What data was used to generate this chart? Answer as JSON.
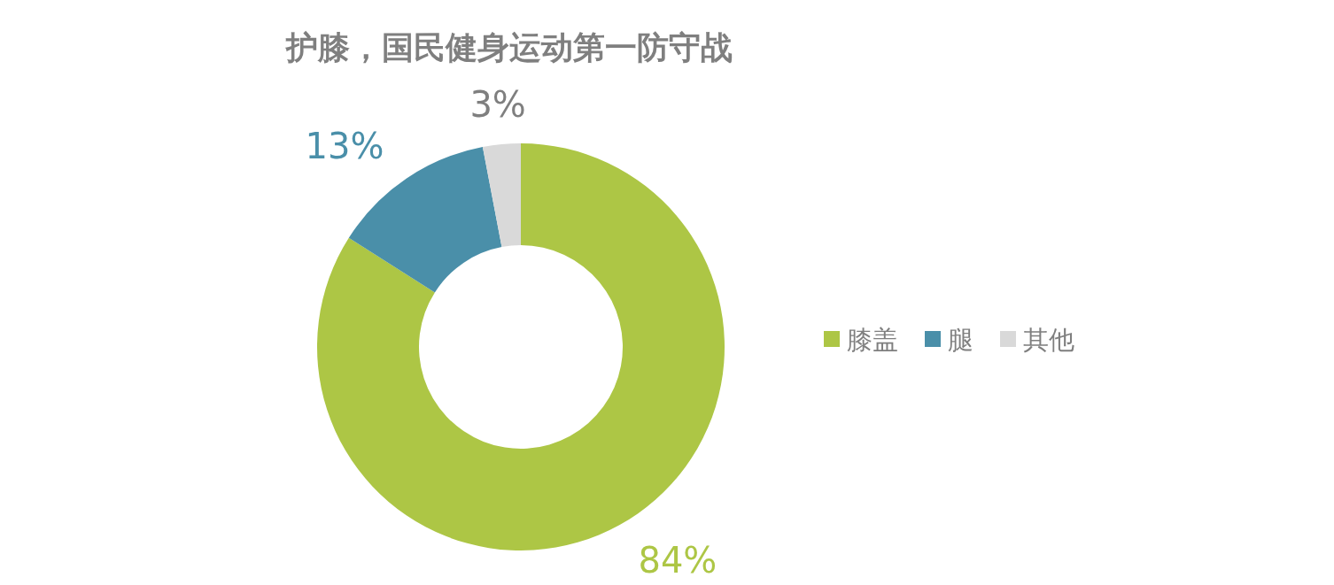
{
  "chart_data": {
    "type": "donut",
    "title": "护膝，国民健身运动第一防守战",
    "categories": [
      "膝盖",
      "腿",
      "其他"
    ],
    "values": [
      84,
      13,
      3
    ],
    "colors": [
      "#adc645",
      "#4a8fa9",
      "#d9d9d9"
    ],
    "value_labels": [
      "84%",
      "13%",
      "3%"
    ],
    "legend": "right"
  }
}
